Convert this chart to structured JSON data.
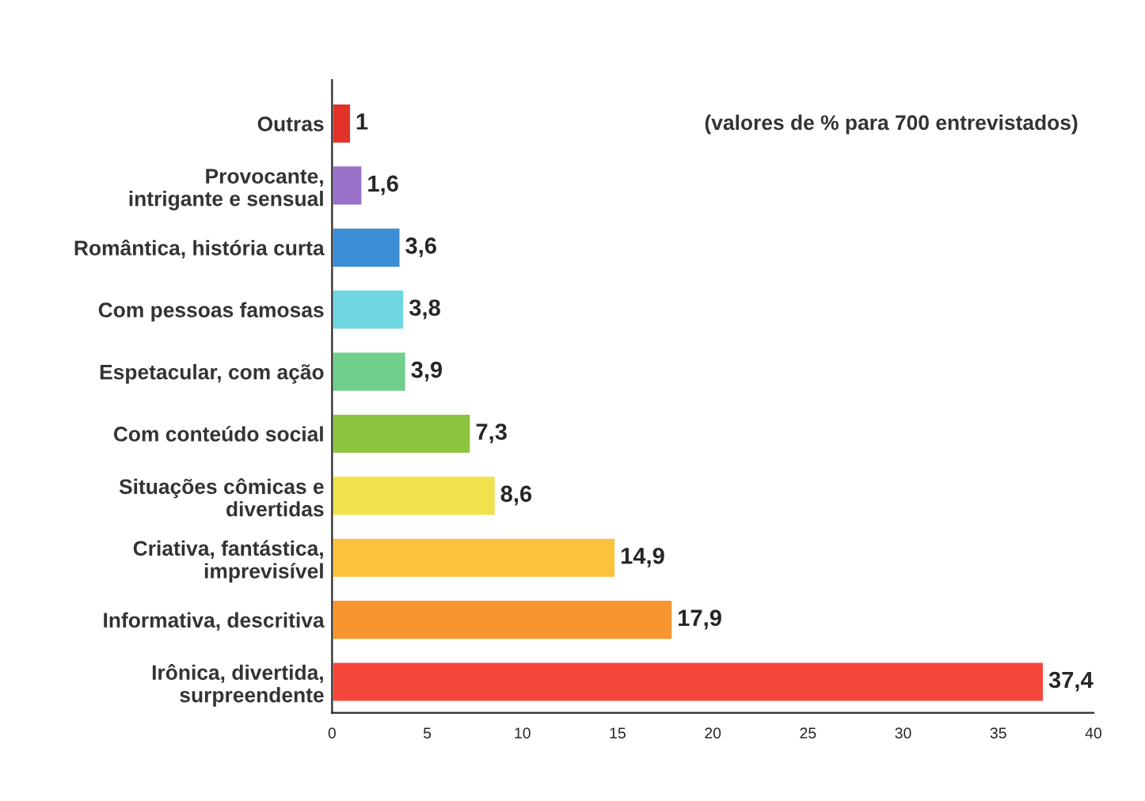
{
  "chart_data": {
    "type": "bar",
    "orientation": "horizontal",
    "categories": [
      "Outras",
      "Provocante,\nintrigante e sensual",
      "Romântica, história curta",
      "Com pessoas famosas",
      "Espetacular, com ação",
      "Com conteúdo social",
      "Situações cômicas e\ndivertidas",
      "Criativa, fantástica,\nimprevisível",
      "Informativa, descritiva",
      "Irônica, divertida,\nsurpreendente"
    ],
    "values": [
      1,
      1.6,
      3.6,
      3.8,
      3.9,
      7.3,
      8.6,
      14.9,
      17.9,
      37.4
    ],
    "value_labels": [
      "1",
      "1,6",
      "3,6",
      "3,8",
      "3,9",
      "7,3",
      "8,6",
      "14,9",
      "17,9",
      "37,4"
    ],
    "colors": [
      "#e2322a",
      "#9b72c9",
      "#3b8ed6",
      "#6fd6e2",
      "#70cf8c",
      "#8bc53f",
      "#efe24c",
      "#fbc33c",
      "#f7962f",
      "#f4473a"
    ],
    "xlim": [
      0,
      40
    ],
    "xticks": [
      0,
      5,
      10,
      15,
      20,
      25,
      30,
      35,
      40
    ],
    "annotations": [
      "(valores de % para 700 entrevistados)"
    ],
    "grid": false,
    "legend": false
  }
}
